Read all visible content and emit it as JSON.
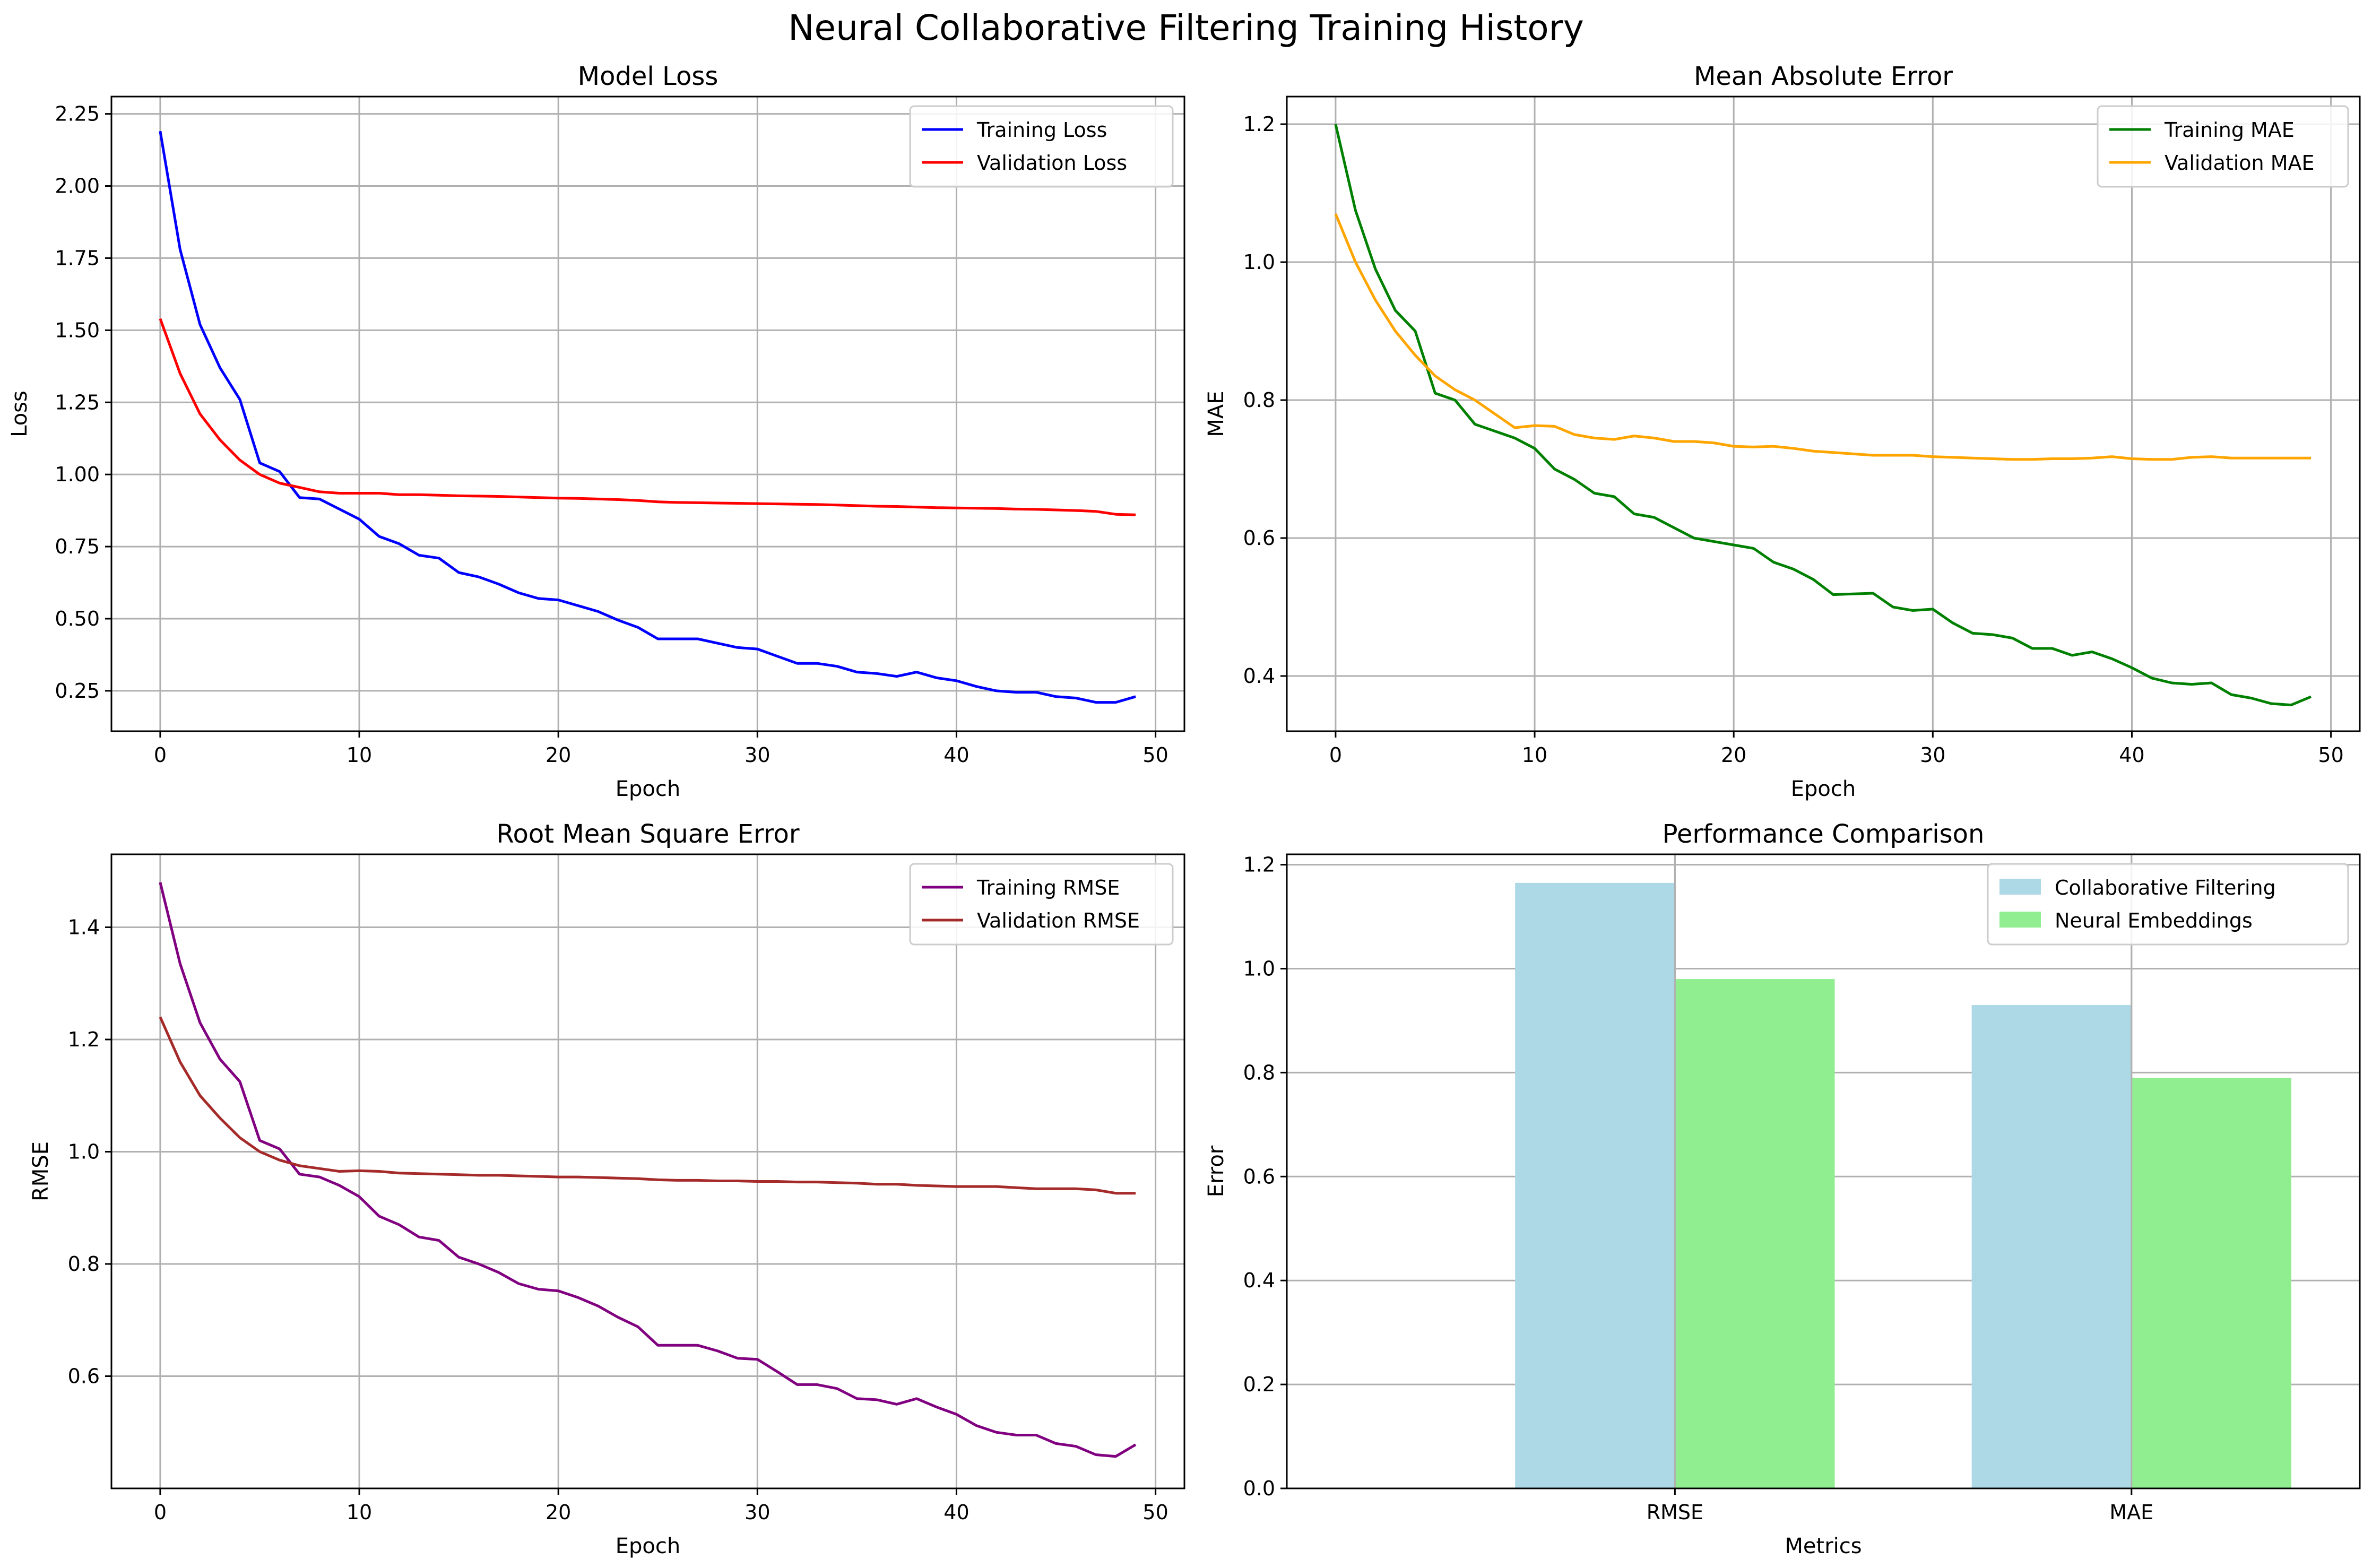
{
  "figure_title": "Neural Collaborative Filtering Training History",
  "colors": {
    "grid": "#b0b0b0",
    "training_loss": "#0000ff",
    "validation_loss": "#ff0000",
    "training_mae": "#008000",
    "validation_mae": "#ffa500",
    "training_rmse": "#800080",
    "validation_rmse": "#a52a2a",
    "collaborative_filtering": "#add8e6",
    "neural_embeddings": "#90ee90"
  },
  "chart_data": [
    {
      "id": "loss",
      "type": "line",
      "title": "Model Loss",
      "xlabel": "Epoch",
      "ylabel": "Loss",
      "xlim": [
        -2.45,
        51.45
      ],
      "ylim": [
        0.11,
        2.31
      ],
      "xticks": [
        0,
        10,
        20,
        30,
        40,
        50
      ],
      "yticks": [
        0.25,
        0.5,
        0.75,
        1.0,
        1.25,
        1.5,
        1.75,
        2.0,
        2.25
      ],
      "ytick_labels": [
        "0.25",
        "0.50",
        "0.75",
        "1.00",
        "1.25",
        "1.50",
        "1.75",
        "2.00",
        "2.25"
      ],
      "grid": true,
      "legend_position": "top-right",
      "series": [
        {
          "name": "Training Loss",
          "color": "#0000ff",
          "values": [
            2.19,
            1.78,
            1.52,
            1.37,
            1.26,
            1.04,
            1.01,
            0.92,
            0.915,
            0.88,
            0.845,
            0.785,
            0.76,
            0.72,
            0.71,
            0.66,
            0.645,
            0.62,
            0.59,
            0.57,
            0.565,
            0.545,
            0.525,
            0.495,
            0.47,
            0.43,
            0.43,
            0.43,
            0.415,
            0.4,
            0.395,
            0.37,
            0.345,
            0.345,
            0.335,
            0.315,
            0.31,
            0.3,
            0.315,
            0.295,
            0.285,
            0.265,
            0.25,
            0.245,
            0.245,
            0.23,
            0.225,
            0.21,
            0.21,
            0.23
          ]
        },
        {
          "name": "Validation Loss",
          "color": "#ff0000",
          "values": [
            1.54,
            1.35,
            1.21,
            1.12,
            1.05,
            1.0,
            0.97,
            0.955,
            0.94,
            0.935,
            0.935,
            0.935,
            0.93,
            0.93,
            0.928,
            0.926,
            0.925,
            0.924,
            0.922,
            0.92,
            0.918,
            0.917,
            0.915,
            0.913,
            0.91,
            0.905,
            0.903,
            0.902,
            0.901,
            0.9,
            0.899,
            0.898,
            0.897,
            0.896,
            0.894,
            0.892,
            0.89,
            0.889,
            0.887,
            0.885,
            0.884,
            0.883,
            0.882,
            0.88,
            0.879,
            0.877,
            0.875,
            0.872,
            0.862,
            0.86
          ]
        }
      ]
    },
    {
      "id": "mae",
      "type": "line",
      "title": "Mean Absolute Error",
      "xlabel": "Epoch",
      "ylabel": "MAE",
      "xlim": [
        -2.45,
        51.45
      ],
      "ylim": [
        0.32,
        1.24
      ],
      "xticks": [
        0,
        10,
        20,
        30,
        40,
        50
      ],
      "yticks": [
        0.4,
        0.6,
        0.8,
        1.0,
        1.2
      ],
      "ytick_labels": [
        "0.4",
        "0.6",
        "0.8",
        "1.0",
        "1.2"
      ],
      "grid": true,
      "legend_position": "top-right",
      "series": [
        {
          "name": "Training MAE",
          "color": "#008000",
          "values": [
            1.2,
            1.075,
            0.99,
            0.93,
            0.9,
            0.81,
            0.8,
            0.765,
            0.755,
            0.745,
            0.73,
            0.7,
            0.685,
            0.665,
            0.66,
            0.635,
            0.63,
            0.615,
            0.6,
            0.595,
            0.59,
            0.585,
            0.565,
            0.555,
            0.54,
            0.518,
            0.519,
            0.52,
            0.5,
            0.495,
            0.497,
            0.477,
            0.462,
            0.46,
            0.455,
            0.44,
            0.44,
            0.43,
            0.435,
            0.425,
            0.412,
            0.397,
            0.39,
            0.388,
            0.39,
            0.373,
            0.368,
            0.36,
            0.358,
            0.37
          ]
        },
        {
          "name": "Validation MAE",
          "color": "#ffa500",
          "values": [
            1.07,
            1.0,
            0.945,
            0.9,
            0.865,
            0.835,
            0.815,
            0.8,
            0.78,
            0.76,
            0.763,
            0.762,
            0.75,
            0.745,
            0.743,
            0.748,
            0.745,
            0.74,
            0.74,
            0.738,
            0.733,
            0.732,
            0.733,
            0.73,
            0.726,
            0.724,
            0.722,
            0.72,
            0.72,
            0.72,
            0.718,
            0.717,
            0.716,
            0.715,
            0.714,
            0.714,
            0.715,
            0.715,
            0.716,
            0.718,
            0.715,
            0.714,
            0.714,
            0.717,
            0.718,
            0.716,
            0.716,
            0.716,
            0.716,
            0.716
          ]
        }
      ]
    },
    {
      "id": "rmse",
      "type": "line",
      "title": "Root Mean Square Error",
      "xlabel": "Epoch",
      "ylabel": "RMSE",
      "xlim": [
        -2.45,
        51.45
      ],
      "ylim": [
        0.4,
        1.53
      ],
      "xticks": [
        0,
        10,
        20,
        30,
        40,
        50
      ],
      "yticks": [
        0.6,
        0.8,
        1.0,
        1.2,
        1.4
      ],
      "ytick_labels": [
        "0.6",
        "0.8",
        "1.0",
        "1.2",
        "1.4"
      ],
      "grid": true,
      "legend_position": "top-right",
      "series": [
        {
          "name": "Training RMSE",
          "color": "#800080",
          "values": [
            1.48,
            1.335,
            1.23,
            1.165,
            1.125,
            1.02,
            1.005,
            0.96,
            0.955,
            0.94,
            0.92,
            0.885,
            0.87,
            0.848,
            0.842,
            0.812,
            0.8,
            0.785,
            0.765,
            0.755,
            0.752,
            0.74,
            0.725,
            0.705,
            0.688,
            0.655,
            0.655,
            0.655,
            0.645,
            0.632,
            0.63,
            0.608,
            0.585,
            0.585,
            0.578,
            0.56,
            0.558,
            0.55,
            0.56,
            0.545,
            0.532,
            0.512,
            0.5,
            0.495,
            0.495,
            0.48,
            0.475,
            0.46,
            0.457,
            0.478
          ]
        },
        {
          "name": "Validation RMSE",
          "color": "#a52a2a",
          "values": [
            1.24,
            1.16,
            1.1,
            1.06,
            1.025,
            1.0,
            0.985,
            0.975,
            0.97,
            0.965,
            0.966,
            0.965,
            0.962,
            0.961,
            0.96,
            0.959,
            0.958,
            0.958,
            0.957,
            0.956,
            0.955,
            0.955,
            0.954,
            0.953,
            0.952,
            0.95,
            0.949,
            0.949,
            0.948,
            0.948,
            0.947,
            0.947,
            0.946,
            0.946,
            0.945,
            0.944,
            0.942,
            0.942,
            0.94,
            0.939,
            0.938,
            0.938,
            0.938,
            0.936,
            0.934,
            0.934,
            0.934,
            0.932,
            0.926,
            0.926
          ]
        }
      ]
    },
    {
      "id": "comparison",
      "type": "bar",
      "title": "Performance Comparison",
      "xlabel": "Metrics",
      "ylabel": "Error",
      "categories": [
        "RMSE",
        "MAE"
      ],
      "ylim": [
        0,
        1.22
      ],
      "yticks": [
        0.0,
        0.2,
        0.4,
        0.6,
        0.8,
        1.0,
        1.2
      ],
      "ytick_labels": [
        "0.0",
        "0.2",
        "0.4",
        "0.6",
        "0.8",
        "1.0",
        "1.2"
      ],
      "grid": true,
      "legend_position": "top-right",
      "series": [
        {
          "name": "Collaborative Filtering",
          "color": "#add8e6",
          "values": [
            1.165,
            0.93
          ]
        },
        {
          "name": "Neural Embeddings",
          "color": "#90ee90",
          "values": [
            0.98,
            0.79
          ]
        }
      ]
    }
  ]
}
